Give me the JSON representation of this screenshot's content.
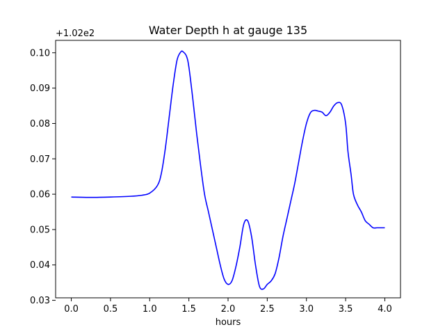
{
  "chart_data": {
    "type": "line",
    "title": "Water Depth h at gauge 135",
    "xlabel": "hours",
    "ylabel": "",
    "y_offset_label": "+1.02e2",
    "xlim": [
      -0.2,
      4.2
    ],
    "ylim": [
      0.0307,
      0.1035
    ],
    "x_ticks": [
      0.0,
      0.5,
      1.0,
      1.5,
      2.0,
      2.5,
      3.0,
      3.5,
      4.0
    ],
    "x_tick_labels": [
      "0.0",
      "0.5",
      "1.0",
      "1.5",
      "2.0",
      "2.5",
      "3.0",
      "3.5",
      "4.0"
    ],
    "y_ticks": [
      0.03,
      0.04,
      0.05,
      0.06,
      0.07,
      0.08,
      0.09,
      0.1
    ],
    "y_tick_labels": [
      "0.03",
      "0.04",
      "0.05",
      "0.06",
      "0.07",
      "0.08",
      "0.09",
      "0.10"
    ],
    "grid": false,
    "series": [
      {
        "color": "#0000ff",
        "x": [
          0.0,
          0.25,
          0.5,
          0.75,
          0.9,
          1.0,
          1.1,
          1.15,
          1.2,
          1.25,
          1.3,
          1.35,
          1.4,
          1.43,
          1.47,
          1.5,
          1.55,
          1.6,
          1.65,
          1.7,
          1.75,
          1.8,
          1.85,
          1.9,
          1.95,
          2.0,
          2.05,
          2.1,
          2.15,
          2.2,
          2.25,
          2.3,
          2.35,
          2.4,
          2.45,
          2.5,
          2.55,
          2.6,
          2.65,
          2.7,
          2.75,
          2.8,
          2.85,
          2.9,
          2.95,
          3.0,
          3.05,
          3.1,
          3.15,
          3.2,
          3.25,
          3.3,
          3.35,
          3.4,
          3.45,
          3.5,
          3.53,
          3.57,
          3.6,
          3.65,
          3.7,
          3.75,
          3.8,
          3.85,
          3.9,
          3.95,
          4.0
        ],
        "y": [
          0.0592,
          0.0591,
          0.0592,
          0.0594,
          0.0597,
          0.0603,
          0.0625,
          0.066,
          0.073,
          0.082,
          0.091,
          0.098,
          0.1003,
          0.1002,
          0.099,
          0.096,
          0.087,
          0.077,
          0.068,
          0.06,
          0.055,
          0.05,
          0.045,
          0.04,
          0.036,
          0.0345,
          0.0355,
          0.0395,
          0.045,
          0.0515,
          0.0525,
          0.048,
          0.04,
          0.034,
          0.0332,
          0.0345,
          0.0355,
          0.0375,
          0.042,
          0.048,
          0.053,
          0.058,
          0.063,
          0.069,
          0.075,
          0.08,
          0.083,
          0.0837,
          0.0835,
          0.0832,
          0.0822,
          0.0832,
          0.085,
          0.0859,
          0.0852,
          0.08,
          0.072,
          0.0655,
          0.06,
          0.057,
          0.055,
          0.0525,
          0.0515,
          0.0505,
          0.0505,
          0.0505,
          0.0505
        ]
      }
    ]
  }
}
